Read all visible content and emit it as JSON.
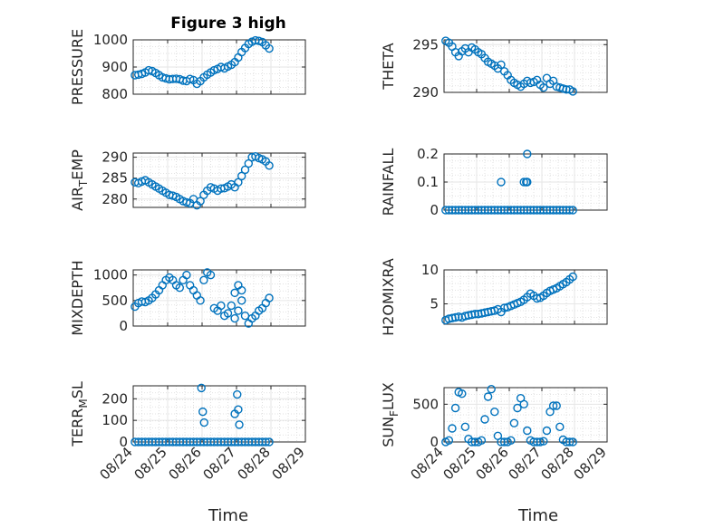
{
  "figure_title": "Figure 3 high",
  "marker_color": "#0072BD",
  "x_tick_labels": [
    "08/24",
    "08/25",
    "08/26",
    "08/27",
    "08/28",
    "08/29"
  ],
  "x_axis_label": "Time",
  "chart_data": [
    {
      "type": "scatter",
      "ylabel": "PRESSURE",
      "ylim": [
        800,
        1000
      ],
      "yticks": [
        800,
        900,
        1000
      ],
      "grid": true,
      "xlim": [
        0,
        5
      ],
      "x": [
        0.05,
        0.15,
        0.25,
        0.35,
        0.45,
        0.55,
        0.65,
        0.75,
        0.85,
        0.95,
        1.05,
        1.15,
        1.25,
        1.35,
        1.45,
        1.55,
        1.65,
        1.75,
        1.85,
        1.95,
        2.05,
        2.15,
        2.25,
        2.35,
        2.45,
        2.55,
        2.65,
        2.75,
        2.85,
        2.95,
        3.05,
        3.15,
        3.25,
        3.35,
        3.45,
        3.55,
        3.65,
        3.75,
        3.85,
        3.95
      ],
      "y": [
        870,
        872,
        875,
        880,
        888,
        885,
        878,
        870,
        862,
        858,
        855,
        856,
        857,
        855,
        850,
        848,
        856,
        852,
        838,
        848,
        862,
        872,
        880,
        888,
        893,
        900,
        895,
        902,
        908,
        918,
        935,
        955,
        970,
        985,
        993,
        998,
        996,
        992,
        980,
        968
      ]
    },
    {
      "type": "scatter",
      "ylabel": "THETA",
      "ylim": [
        290,
        295.5
      ],
      "yticks": [
        290,
        295
      ],
      "grid": true,
      "xlim": [
        0,
        5
      ],
      "x": [
        0.05,
        0.15,
        0.25,
        0.35,
        0.45,
        0.55,
        0.65,
        0.75,
        0.85,
        0.95,
        1.05,
        1.15,
        1.25,
        1.35,
        1.45,
        1.55,
        1.65,
        1.75,
        1.85,
        1.95,
        2.05,
        2.15,
        2.25,
        2.35,
        2.45,
        2.55,
        2.65,
        2.75,
        2.85,
        2.95,
        3.05,
        3.15,
        3.25,
        3.35,
        3.45,
        3.55,
        3.65,
        3.75,
        3.85,
        3.95
      ],
      "y": [
        295.4,
        295.2,
        294.8,
        294.2,
        293.8,
        294.3,
        294.6,
        294.2,
        294.7,
        294.5,
        294.2,
        294.0,
        293.6,
        293.2,
        293.0,
        292.8,
        292.5,
        292.9,
        292.2,
        291.8,
        291.3,
        291.0,
        290.8,
        290.6,
        290.9,
        291.2,
        291.0,
        291.1,
        291.3,
        290.8,
        290.5,
        291.5,
        290.9,
        291.2,
        290.6,
        290.5,
        290.4,
        290.3,
        290.3,
        290.1
      ]
    },
    {
      "type": "scatter",
      "ylabel": "AIR_TEMP",
      "ylim": [
        278,
        291
      ],
      "yticks": [
        280,
        285,
        290
      ],
      "grid": true,
      "xlim": [
        0,
        5
      ],
      "x": [
        0.05,
        0.15,
        0.25,
        0.35,
        0.45,
        0.55,
        0.65,
        0.75,
        0.85,
        0.95,
        1.05,
        1.15,
        1.25,
        1.35,
        1.45,
        1.55,
        1.65,
        1.75,
        1.85,
        1.95,
        2.05,
        2.15,
        2.25,
        2.35,
        2.45,
        2.55,
        2.65,
        2.75,
        2.85,
        2.95,
        3.05,
        3.15,
        3.25,
        3.35,
        3.45,
        3.55,
        3.65,
        3.75,
        3.85,
        3.95
      ],
      "y": [
        284.0,
        283.8,
        284.2,
        284.5,
        284.0,
        283.5,
        283.0,
        282.5,
        282.0,
        281.5,
        281.0,
        280.8,
        280.5,
        280.0,
        279.5,
        279.2,
        279.0,
        280.0,
        278.5,
        279.5,
        281.0,
        282.0,
        282.8,
        282.5,
        282.0,
        282.5,
        282.6,
        283.0,
        283.5,
        282.8,
        284.0,
        285.5,
        287.0,
        288.5,
        290.0,
        290.2,
        289.8,
        289.5,
        289.0,
        288.0
      ]
    },
    {
      "type": "scatter",
      "ylabel": "RAINFALL",
      "ylim": [
        0,
        0.2
      ],
      "yticks": [
        0,
        0.1,
        0.2
      ],
      "grid": true,
      "xlim": [
        0,
        5
      ],
      "x": [
        0.05,
        0.15,
        0.25,
        0.35,
        0.45,
        0.55,
        0.65,
        0.75,
        0.85,
        0.95,
        1.05,
        1.15,
        1.25,
        1.35,
        1.45,
        1.55,
        1.65,
        1.75,
        1.85,
        1.95,
        2.05,
        2.15,
        2.25,
        2.35,
        2.45,
        2.55,
        2.65,
        2.75,
        2.85,
        2.95,
        3.05,
        3.15,
        3.25,
        3.35,
        3.45,
        3.55,
        3.65,
        3.75,
        3.85,
        3.95,
        1.75,
        2.45,
        2.52,
        2.55,
        2.55
      ],
      "y": [
        0,
        0,
        0,
        0,
        0,
        0,
        0,
        0,
        0,
        0,
        0,
        0,
        0,
        0,
        0,
        0,
        0,
        0,
        0,
        0,
        0,
        0,
        0,
        0,
        0,
        0,
        0,
        0,
        0,
        0,
        0,
        0,
        0,
        0,
        0,
        0,
        0,
        0,
        0,
        0,
        0.1,
        0.1,
        0.1,
        0.2,
        0.1
      ]
    },
    {
      "type": "scatter",
      "ylabel": "MIXDEPTH",
      "ylim": [
        0,
        1100
      ],
      "yticks": [
        0,
        500,
        1000
      ],
      "grid": true,
      "xlim": [
        0,
        5
      ],
      "x": [
        0.05,
        0.15,
        0.25,
        0.35,
        0.45,
        0.55,
        0.65,
        0.75,
        0.85,
        0.95,
        1.05,
        1.15,
        1.25,
        1.35,
        1.45,
        1.55,
        1.65,
        1.75,
        1.85,
        1.95,
        2.05,
        2.15,
        2.25,
        2.35,
        2.45,
        2.55,
        2.65,
        2.75,
        2.85,
        2.95,
        3.05,
        3.15,
        3.25,
        3.35,
        3.45,
        3.55,
        3.65,
        3.75,
        3.85,
        3.95,
        2.95,
        3.05,
        3.15
      ],
      "y": [
        380,
        450,
        480,
        470,
        500,
        550,
        620,
        700,
        800,
        900,
        950,
        900,
        800,
        750,
        900,
        1000,
        800,
        700,
        600,
        500,
        900,
        1050,
        1000,
        350,
        300,
        400,
        200,
        250,
        400,
        150,
        300,
        500,
        200,
        50,
        150,
        200,
        300,
        350,
        450,
        550,
        650,
        800,
        700
      ]
    },
    {
      "type": "scatter",
      "ylabel": "H2OMIXRA",
      "ylim": [
        2,
        10
      ],
      "yticks": [
        5,
        10
      ],
      "grid": true,
      "xlim": [
        0,
        5
      ],
      "x": [
        0.05,
        0.15,
        0.25,
        0.35,
        0.45,
        0.55,
        0.65,
        0.75,
        0.85,
        0.95,
        1.05,
        1.15,
        1.25,
        1.35,
        1.45,
        1.55,
        1.65,
        1.75,
        1.85,
        1.95,
        2.05,
        2.15,
        2.25,
        2.35,
        2.45,
        2.55,
        2.65,
        2.75,
        2.85,
        2.95,
        3.05,
        3.15,
        3.25,
        3.35,
        3.45,
        3.55,
        3.65,
        3.75,
        3.85,
        3.95
      ],
      "y": [
        2.6,
        2.8,
        2.9,
        3.0,
        3.1,
        3.0,
        3.2,
        3.3,
        3.4,
        3.5,
        3.5,
        3.6,
        3.7,
        3.8,
        3.9,
        4.0,
        4.2,
        3.8,
        4.4,
        4.5,
        4.7,
        4.9,
        5.1,
        5.3,
        5.6,
        6.0,
        6.5,
        6.2,
        5.8,
        5.9,
        6.2,
        6.6,
        6.9,
        7.1,
        7.3,
        7.6,
        7.9,
        8.2,
        8.6,
        9.0
      ]
    },
    {
      "type": "scatter",
      "ylabel": "TERR_MSL",
      "ylim": [
        0,
        260
      ],
      "yticks": [
        0,
        100,
        200
      ],
      "grid": true,
      "xlim": [
        0,
        5
      ],
      "x": [
        0.05,
        0.15,
        0.25,
        0.35,
        0.45,
        0.55,
        0.65,
        0.75,
        0.85,
        0.95,
        1.05,
        1.15,
        1.25,
        1.35,
        1.45,
        1.55,
        1.65,
        1.75,
        1.85,
        1.95,
        2.05,
        2.15,
        2.25,
        2.35,
        2.45,
        2.55,
        2.65,
        2.75,
        2.85,
        2.95,
        3.05,
        3.15,
        3.25,
        3.35,
        3.45,
        3.55,
        3.65,
        3.75,
        3.85,
        3.95,
        1.98,
        2.02,
        2.06,
        2.95,
        3.02,
        3.05,
        3.08
      ],
      "y": [
        0,
        0,
        0,
        0,
        0,
        0,
        0,
        0,
        0,
        0,
        0,
        0,
        0,
        0,
        0,
        0,
        0,
        0,
        0,
        0,
        0,
        0,
        0,
        0,
        0,
        0,
        0,
        0,
        0,
        0,
        0,
        0,
        0,
        0,
        0,
        0,
        0,
        0,
        0,
        0,
        250,
        140,
        90,
        130,
        220,
        150,
        80
      ]
    },
    {
      "type": "scatter",
      "ylabel": "SUN_FLUX",
      "ylim": [
        0,
        720
      ],
      "yticks": [
        0,
        500
      ],
      "grid": true,
      "xlim": [
        0,
        5
      ],
      "x": [
        0.05,
        0.15,
        0.25,
        0.35,
        0.45,
        0.55,
        0.65,
        0.75,
        0.85,
        0.95,
        1.05,
        1.15,
        1.25,
        1.35,
        1.45,
        1.55,
        1.65,
        1.75,
        1.85,
        1.95,
        2.05,
        2.15,
        2.25,
        2.35,
        2.45,
        2.55,
        2.65,
        2.75,
        2.85,
        2.95,
        3.05,
        3.15,
        3.25,
        3.35,
        3.45,
        3.55,
        3.65,
        3.75,
        3.85,
        3.95
      ],
      "y": [
        0,
        20,
        180,
        450,
        660,
        640,
        200,
        40,
        0,
        0,
        0,
        20,
        300,
        600,
        700,
        400,
        80,
        0,
        0,
        0,
        20,
        250,
        450,
        580,
        500,
        150,
        20,
        0,
        0,
        0,
        10,
        150,
        400,
        480,
        480,
        200,
        30,
        0,
        0,
        0
      ]
    }
  ]
}
